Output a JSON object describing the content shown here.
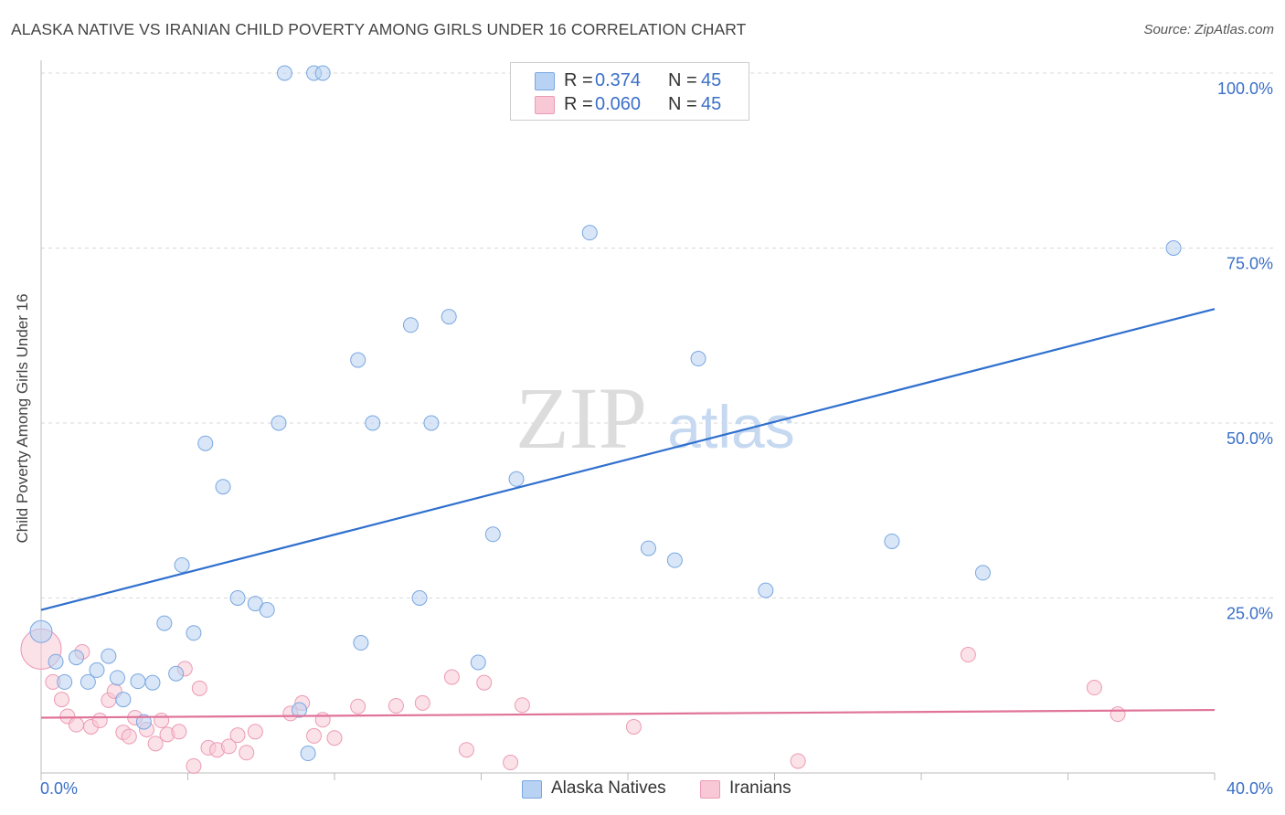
{
  "title": "ALASKA NATIVE VS IRANIAN CHILD POVERTY AMONG GIRLS UNDER 16 CORRELATION CHART",
  "source": "Source: ZipAtlas.com",
  "watermark": {
    "zip": "ZIP",
    "atlas": "atlas"
  },
  "legend": {
    "r_label": "R =",
    "n_label": "N =",
    "rows": [
      {
        "series": "Alaska Natives",
        "r": "0.374",
        "n": "45"
      },
      {
        "series": "Iranians",
        "r": "0.060",
        "n": "45"
      }
    ]
  },
  "colors": {
    "blue_fill": "#b8d2f3",
    "blue_stroke": "#7aa7e0",
    "blue_line": "#2f6fce",
    "pink_fill": "#f8c8d6",
    "pink_stroke": "#ec9bb4",
    "pink_line": "#e0739a",
    "tick_label": "#3a6fc7",
    "grid": "#d9d9d9"
  },
  "chart_data": {
    "type": "scatter",
    "title": "ALASKA NATIVE VS IRANIAN CHILD POVERTY AMONG GIRLS UNDER 16 CORRELATION CHART",
    "xlabel": "",
    "ylabel": "Child Poverty Among Girls Under 16",
    "xlim": [
      0,
      40
    ],
    "ylim": [
      0,
      100
    ],
    "x_tick_labels": [
      "0.0%",
      "40.0%"
    ],
    "y_ticks": [
      25,
      50,
      75,
      100
    ],
    "y_tick_labels": [
      "25.0%",
      "50.0%",
      "75.0%",
      "100.0%"
    ],
    "grid": true,
    "series": [
      {
        "name": "Alaska Natives",
        "r": 0.374,
        "n": 45,
        "trend": {
          "x": [
            0,
            40
          ],
          "y": [
            23.3,
            66.3
          ]
        },
        "points": [
          {
            "x": 0.0,
            "y": 20.2
          },
          {
            "x": 0.5,
            "y": 15.9
          },
          {
            "x": 0.8,
            "y": 13.0
          },
          {
            "x": 1.2,
            "y": 16.5
          },
          {
            "x": 1.6,
            "y": 13.0
          },
          {
            "x": 1.9,
            "y": 14.7
          },
          {
            "x": 2.3,
            "y": 16.7
          },
          {
            "x": 2.6,
            "y": 13.6
          },
          {
            "x": 2.8,
            "y": 10.5
          },
          {
            "x": 3.3,
            "y": 13.1
          },
          {
            "x": 3.5,
            "y": 7.3
          },
          {
            "x": 3.8,
            "y": 12.9
          },
          {
            "x": 4.2,
            "y": 21.4
          },
          {
            "x": 4.6,
            "y": 14.2
          },
          {
            "x": 4.8,
            "y": 29.7
          },
          {
            "x": 5.2,
            "y": 20.0
          },
          {
            "x": 5.6,
            "y": 47.1
          },
          {
            "x": 6.2,
            "y": 40.9
          },
          {
            "x": 6.7,
            "y": 25.0
          },
          {
            "x": 7.3,
            "y": 24.2
          },
          {
            "x": 7.7,
            "y": 23.3
          },
          {
            "x": 8.1,
            "y": 50.0
          },
          {
            "x": 8.3,
            "y": 100.0
          },
          {
            "x": 8.8,
            "y": 9.0
          },
          {
            "x": 9.1,
            "y": 2.8
          },
          {
            "x": 9.3,
            "y": 100.0
          },
          {
            "x": 9.6,
            "y": 100.0
          },
          {
            "x": 10.8,
            "y": 59.0
          },
          {
            "x": 10.9,
            "y": 18.6
          },
          {
            "x": 11.3,
            "y": 50.0
          },
          {
            "x": 12.6,
            "y": 64.0
          },
          {
            "x": 12.9,
            "y": 25.0
          },
          {
            "x": 13.3,
            "y": 50.0
          },
          {
            "x": 13.9,
            "y": 65.2
          },
          {
            "x": 14.9,
            "y": 15.8
          },
          {
            "x": 15.4,
            "y": 34.1
          },
          {
            "x": 16.2,
            "y": 42.0
          },
          {
            "x": 18.7,
            "y": 77.2
          },
          {
            "x": 20.7,
            "y": 32.1
          },
          {
            "x": 21.6,
            "y": 30.4
          },
          {
            "x": 22.4,
            "y": 59.2
          },
          {
            "x": 24.7,
            "y": 26.1
          },
          {
            "x": 29.0,
            "y": 33.1
          },
          {
            "x": 32.1,
            "y": 28.6
          },
          {
            "x": 38.6,
            "y": 75.0
          }
        ]
      },
      {
        "name": "Iranians",
        "r": 0.06,
        "n": 45,
        "trend": {
          "x": [
            0,
            40
          ],
          "y": [
            7.9,
            9.0
          ]
        },
        "points": [
          {
            "x": 0.0,
            "y": 17.7
          },
          {
            "x": 0.4,
            "y": 13.0
          },
          {
            "x": 0.7,
            "y": 10.5
          },
          {
            "x": 0.9,
            "y": 8.1
          },
          {
            "x": 1.2,
            "y": 6.9
          },
          {
            "x": 1.4,
            "y": 17.3
          },
          {
            "x": 1.7,
            "y": 6.6
          },
          {
            "x": 2.0,
            "y": 7.5
          },
          {
            "x": 2.3,
            "y": 10.4
          },
          {
            "x": 2.5,
            "y": 11.7
          },
          {
            "x": 2.8,
            "y": 5.8
          },
          {
            "x": 3.0,
            "y": 5.2
          },
          {
            "x": 3.2,
            "y": 7.9
          },
          {
            "x": 3.6,
            "y": 6.2
          },
          {
            "x": 3.9,
            "y": 4.2
          },
          {
            "x": 4.1,
            "y": 7.5
          },
          {
            "x": 4.3,
            "y": 5.5
          },
          {
            "x": 4.7,
            "y": 5.9
          },
          {
            "x": 4.9,
            "y": 14.9
          },
          {
            "x": 5.2,
            "y": 1.0
          },
          {
            "x": 5.4,
            "y": 12.1
          },
          {
            "x": 5.7,
            "y": 3.6
          },
          {
            "x": 6.0,
            "y": 3.3
          },
          {
            "x": 6.4,
            "y": 3.8
          },
          {
            "x": 6.7,
            "y": 5.4
          },
          {
            "x": 7.0,
            "y": 2.9
          },
          {
            "x": 7.3,
            "y": 5.9
          },
          {
            "x": 8.5,
            "y": 8.5
          },
          {
            "x": 8.9,
            "y": 10.0
          },
          {
            "x": 9.3,
            "y": 5.3
          },
          {
            "x": 9.6,
            "y": 7.6
          },
          {
            "x": 10.0,
            "y": 5.0
          },
          {
            "x": 10.8,
            "y": 9.5
          },
          {
            "x": 12.1,
            "y": 9.6
          },
          {
            "x": 13.0,
            "y": 10.0
          },
          {
            "x": 14.0,
            "y": 13.7
          },
          {
            "x": 14.5,
            "y": 3.3
          },
          {
            "x": 15.1,
            "y": 12.9
          },
          {
            "x": 16.0,
            "y": 1.5
          },
          {
            "x": 16.4,
            "y": 9.7
          },
          {
            "x": 20.2,
            "y": 6.6
          },
          {
            "x": 25.8,
            "y": 1.7
          },
          {
            "x": 31.6,
            "y": 16.9
          },
          {
            "x": 35.9,
            "y": 12.2
          },
          {
            "x": 36.7,
            "y": 8.4
          }
        ]
      }
    ]
  }
}
